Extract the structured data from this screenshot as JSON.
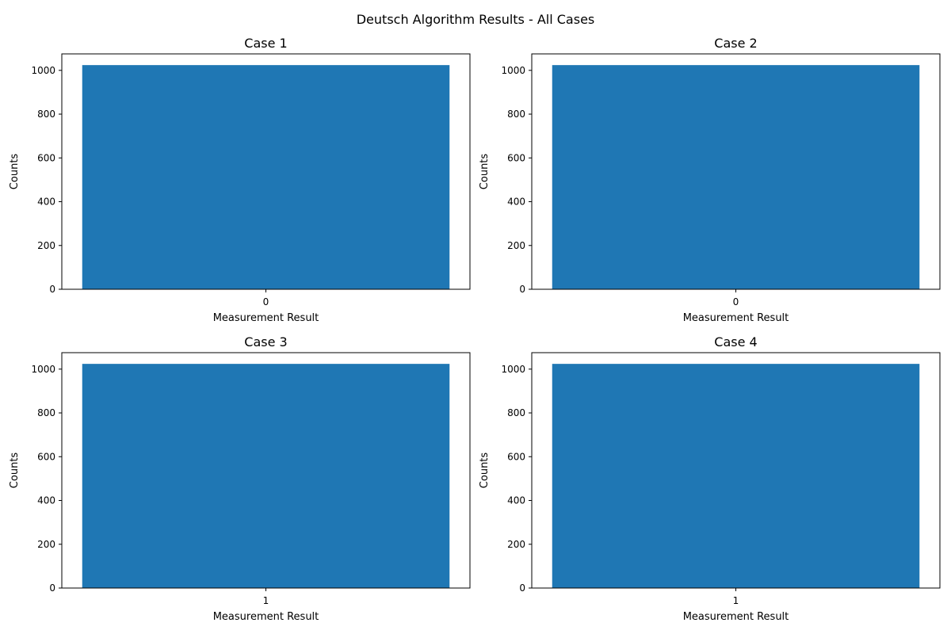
{
  "suptitle": "Deutsch Algorithm Results - All Cases",
  "colors": {
    "bar": "#1f77b4",
    "axis": "#000000",
    "background": "#ffffff"
  },
  "chart_data": [
    {
      "type": "bar",
      "title": "Case 1",
      "xlabel": "Measurement Result",
      "ylabel": "Counts",
      "categories": [
        "0"
      ],
      "values": [
        1024
      ],
      "ylim": [
        0,
        1075.2
      ],
      "yticks": [
        0,
        200,
        400,
        600,
        800,
        1000
      ],
      "grid": false
    },
    {
      "type": "bar",
      "title": "Case 2",
      "xlabel": "Measurement Result",
      "ylabel": "Counts",
      "categories": [
        "0"
      ],
      "values": [
        1024
      ],
      "ylim": [
        0,
        1075.2
      ],
      "yticks": [
        0,
        200,
        400,
        600,
        800,
        1000
      ],
      "grid": false
    },
    {
      "type": "bar",
      "title": "Case 3",
      "xlabel": "Measurement Result",
      "ylabel": "Counts",
      "categories": [
        "1"
      ],
      "values": [
        1024
      ],
      "ylim": [
        0,
        1075.2
      ],
      "yticks": [
        0,
        200,
        400,
        600,
        800,
        1000
      ],
      "grid": false
    },
    {
      "type": "bar",
      "title": "Case 4",
      "xlabel": "Measurement Result",
      "ylabel": "Counts",
      "categories": [
        "1"
      ],
      "values": [
        1024
      ],
      "ylim": [
        0,
        1075.2
      ],
      "yticks": [
        0,
        200,
        400,
        600,
        800,
        1000
      ],
      "grid": false
    }
  ]
}
